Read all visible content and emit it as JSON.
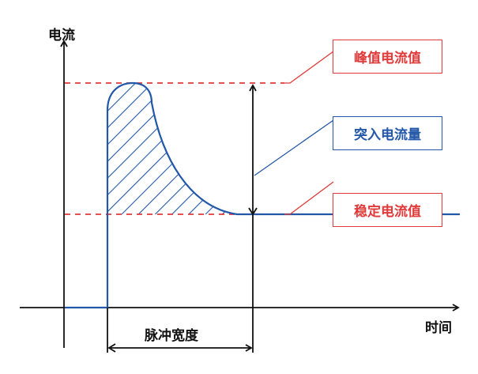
{
  "axes": {
    "y_label": "电流",
    "x_label": "时间"
  },
  "labels": {
    "peak": "峰值电流值",
    "inrush": "突入电流量",
    "steady": "稳定电流值",
    "pulse_width": "脉冲宽度"
  },
  "colors": {
    "red": "#e03a3a",
    "blue": "#2358a8",
    "axis": "#111111"
  }
}
